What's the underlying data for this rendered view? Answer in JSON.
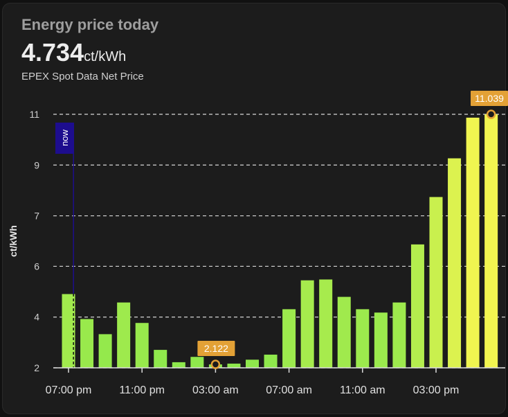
{
  "card": {
    "title": "Energy price today",
    "value": "4.734",
    "unit": "ct/kWh",
    "subtitle": "EPEX Spot Data Net Price"
  },
  "chart_data": {
    "type": "bar",
    "ylabel": "ct/kWh",
    "ylim": [
      2.0,
      11.04
    ],
    "yticks": [
      "2",
      "4",
      "6",
      "7",
      "9",
      "11"
    ],
    "ytick_values": [
      2.0,
      3.81,
      5.62,
      7.42,
      9.23,
      11.04
    ],
    "grid": true,
    "xtick_labels": [
      "07:00 pm",
      "11:00 pm",
      "03:00 am",
      "07:00 am",
      "11:00 am",
      "03:00 pm"
    ],
    "categories": [
      "07:00 pm",
      "08:00 pm",
      "09:00 pm",
      "10:00 pm",
      "11:00 pm",
      "12:00 am",
      "01:00 am",
      "02:00 am",
      "03:00 am",
      "04:00 am",
      "05:00 am",
      "06:00 am",
      "07:00 am",
      "08:00 am",
      "09:00 am",
      "10:00 am",
      "11:00 am",
      "12:00 pm",
      "01:00 pm",
      "02:00 pm",
      "03:00 pm",
      "04:00 pm",
      "05:00 pm",
      "06:00 pm"
    ],
    "values": [
      4.63,
      3.74,
      3.2,
      4.33,
      3.6,
      2.64,
      2.2,
      2.39,
      2.122,
      2.15,
      2.29,
      2.47,
      4.09,
      5.12,
      5.15,
      4.53,
      4.09,
      3.97,
      4.33,
      6.4,
      8.09,
      9.47,
      10.92,
      11.039
    ],
    "now_label": "now",
    "now_index": 0.27,
    "min_annotation": {
      "label": "2.122",
      "index": 8
    },
    "max_annotation": {
      "label": "11.039",
      "index": 23
    },
    "colors": {
      "low": "#8ee84c",
      "high": "#f2f550",
      "annotation": "#e3a136",
      "now": "#1d0d8e"
    }
  }
}
